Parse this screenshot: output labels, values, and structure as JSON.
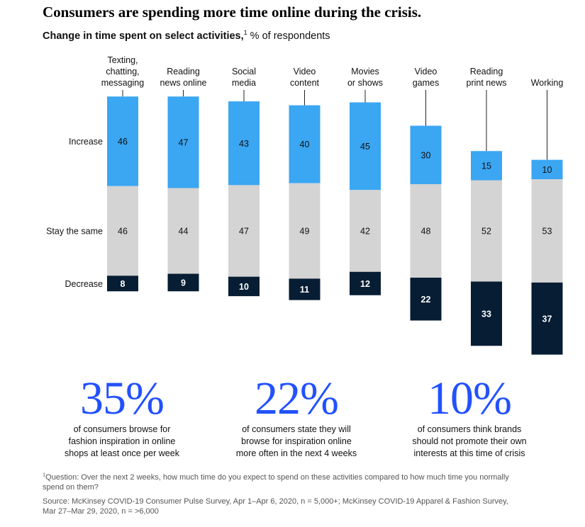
{
  "header": {
    "title": "Consumers are spending more time online during the crisis.",
    "subtitle_bold": "Change in time spent on select activities,",
    "subtitle_sup": "1",
    "subtitle_rest": " % of respondents"
  },
  "chart_data": {
    "type": "bar",
    "stacked": true,
    "title": "Change in time spent on select activities, % of respondents",
    "categories": [
      [
        "Texting,",
        "chatting,",
        "messaging"
      ],
      [
        "Reading",
        "news online"
      ],
      [
        "Social",
        "media"
      ],
      [
        "Video",
        "content"
      ],
      [
        "Movies",
        "or shows"
      ],
      [
        "Video",
        "games"
      ],
      [
        "Reading",
        "print news"
      ],
      [
        "Working"
      ]
    ],
    "series": [
      {
        "name": "Increase",
        "color": "#3ba6f2",
        "text_color": "#111111",
        "values": [
          46,
          47,
          43,
          40,
          45,
          30,
          15,
          10
        ]
      },
      {
        "name": "Stay the same",
        "color": "#d4d4d4",
        "text_color": "#111111",
        "values": [
          46,
          44,
          47,
          49,
          42,
          48,
          52,
          53
        ]
      },
      {
        "name": "Decrease",
        "color": "#061d33",
        "text_color": "#ffffff",
        "values": [
          8,
          9,
          10,
          11,
          12,
          22,
          33,
          37
        ]
      }
    ],
    "row_labels": [
      "Increase",
      "Stay the same",
      "Decrease"
    ]
  },
  "stats": [
    {
      "value": "35%",
      "lines": [
        "of consumers browse for",
        "fashion inspiration in online",
        "shops at least once per week"
      ]
    },
    {
      "value": "22%",
      "lines": [
        "of consumers state they will",
        "browse for inspiration online",
        "more often in the next 4 weeks"
      ]
    },
    {
      "value": "10%",
      "lines": [
        "of consumers think brands",
        "should not promote their own",
        "interests at this time of crisis"
      ]
    }
  ],
  "footnotes": {
    "note_sup": "1",
    "note_lines": [
      "Question: Over the next 2 weeks, how much time do you expect to spend on these activities compared to how much time you normally",
      "spend on them?"
    ],
    "source_lines": [
      "Source: McKinsey COVID-19 Consumer Pulse Survey, Apr 1–Apr 6, 2020, n = 5,000+; McKinsey COVID-19 Apparel & Fashion Survey,",
      "Mar 27–Mar 29, 2020, n = >6,000"
    ]
  }
}
